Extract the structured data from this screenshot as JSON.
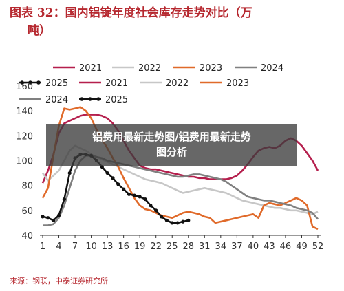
{
  "header": {
    "title_line1": "图表 32：国内铝锭年度社会库存走势对比（万",
    "title_line2": "吨）"
  },
  "overlay": {
    "line1": "铝费用最新走势图/铝费用最新走势",
    "line2": "图分析"
  },
  "footer": {
    "source": "来源：钢联，中泰证券研究所"
  },
  "colors": {
    "title": "#b6282f",
    "s2021": "#b51f4d",
    "s2022": "#c7c7c7",
    "s2023": "#e06a2a",
    "s2024": "#808080",
    "s2025": "#111111"
  },
  "chart_data": {
    "type": "line",
    "ylim": [
      40,
      160
    ],
    "yticks": [
      40,
      60,
      80,
      100,
      120,
      140,
      160
    ],
    "xlim": [
      1,
      52
    ],
    "xticks": [
      1,
      4,
      7,
      10,
      13,
      16,
      19,
      22,
      25,
      28,
      31,
      34,
      37,
      40,
      43,
      46,
      49,
      52
    ],
    "grid": false,
    "legend": {
      "placement": "top",
      "entries": [
        "2021",
        "2022",
        "2023",
        "2024",
        "2025",
        "2021",
        "2022",
        "2023",
        "2024",
        "2025"
      ]
    },
    "series": [
      {
        "name": "2021",
        "color": "#b51f4d",
        "markers": false,
        "x": [
          1,
          2,
          3,
          4,
          5,
          6,
          7,
          8,
          9,
          10,
          11,
          12,
          13,
          14,
          15,
          16,
          17,
          18,
          19,
          20,
          21,
          22,
          23,
          24,
          25,
          26,
          27,
          28,
          29,
          30,
          31,
          32,
          33,
          34,
          35,
          36,
          37,
          38,
          39,
          40,
          41,
          42,
          43,
          44,
          45,
          46,
          47,
          48,
          49,
          50,
          51,
          52
        ],
        "y": [
          82,
          92,
          105,
          122,
          130,
          132,
          134,
          136,
          137,
          137,
          137,
          136,
          134,
          130,
          124,
          116,
          108,
          102,
          96,
          94,
          93,
          93,
          92,
          91,
          90,
          89,
          88,
          87,
          87,
          86,
          86,
          85,
          85,
          85,
          85,
          86,
          88,
          92,
          97,
          103,
          108,
          110,
          111,
          110,
          112,
          116,
          118,
          116,
          112,
          106,
          100,
          92
        ]
      },
      {
        "name": "2022",
        "color": "#c7c7c7",
        "markers": false,
        "x": [
          1,
          2,
          3,
          4,
          5,
          6,
          7,
          8,
          9,
          10,
          11,
          12,
          13,
          14,
          15,
          16,
          17,
          18,
          19,
          20,
          21,
          22,
          23,
          24,
          25,
          26,
          27,
          28,
          29,
          30,
          31,
          32,
          33,
          34,
          35,
          36,
          37,
          38,
          39,
          40,
          41,
          42,
          43,
          44,
          45,
          46,
          47,
          48,
          49,
          50,
          51,
          52
        ],
        "y": [
          90,
          84,
          88,
          92,
          100,
          108,
          112,
          110,
          108,
          105,
          103,
          101,
          99,
          97,
          95,
          93,
          91,
          89,
          87,
          85,
          84,
          83,
          82,
          80,
          78,
          76,
          74,
          75,
          76,
          77,
          78,
          77,
          76,
          75,
          74,
          72,
          70,
          68,
          67,
          66,
          65,
          64,
          63,
          62,
          62,
          61,
          60,
          60,
          59,
          58,
          57,
          59
        ]
      },
      {
        "name": "2023",
        "color": "#e06a2a",
        "markers": false,
        "x": [
          1,
          2,
          3,
          4,
          5,
          6,
          7,
          8,
          9,
          10,
          11,
          12,
          13,
          14,
          15,
          16,
          17,
          18,
          19,
          20,
          21,
          22,
          23,
          24,
          25,
          26,
          27,
          28,
          29,
          30,
          31,
          32,
          33,
          34,
          35,
          36,
          37,
          38,
          39,
          40,
          41,
          42,
          43,
          44,
          45,
          46,
          47,
          48,
          49,
          50,
          51,
          52
        ],
        "y": [
          70,
          78,
          104,
          128,
          142,
          141,
          142,
          143,
          140,
          134,
          125,
          117,
          110,
          102,
          95,
          86,
          78,
          70,
          64,
          61,
          60,
          58,
          56,
          55,
          54,
          56,
          58,
          59,
          58,
          57,
          55,
          54,
          50,
          51,
          52,
          53,
          54,
          55,
          56,
          57,
          54,
          64,
          66,
          65,
          64,
          66,
          68,
          70,
          68,
          64,
          47,
          45
        ]
      },
      {
        "name": "2024",
        "color": "#808080",
        "markers": false,
        "x": [
          1,
          2,
          3,
          4,
          5,
          6,
          7,
          8,
          9,
          10,
          11,
          12,
          13,
          14,
          15,
          16,
          17,
          18,
          19,
          20,
          21,
          22,
          23,
          24,
          25,
          26,
          27,
          28,
          29,
          30,
          31,
          32,
          33,
          34,
          35,
          36,
          37,
          38,
          39,
          40,
          41,
          42,
          43,
          44,
          45,
          46,
          47,
          48,
          49,
          50,
          51,
          52
        ],
        "y": [
          48,
          48,
          49,
          54,
          64,
          78,
          92,
          100,
          104,
          104,
          103,
          102,
          100,
          99,
          98,
          97,
          96,
          95,
          94,
          93,
          92,
          91,
          90,
          89,
          88,
          87,
          87,
          88,
          89,
          89,
          88,
          87,
          86,
          85,
          83,
          80,
          77,
          74,
          71,
          70,
          69,
          68,
          68,
          67,
          66,
          65,
          64,
          62,
          61,
          60,
          58,
          53
        ]
      },
      {
        "name": "2025",
        "color": "#111111",
        "markers": true,
        "x": [
          1,
          2,
          3,
          4,
          5,
          6,
          7,
          8,
          9,
          10,
          11,
          12,
          13,
          14,
          15,
          16,
          17,
          18,
          19,
          20,
          21,
          22,
          23,
          24,
          25,
          26,
          27,
          28
        ],
        "y": [
          55,
          54,
          52,
          56,
          69,
          90,
          102,
          105,
          105,
          104,
          100,
          95,
          90,
          86,
          81,
          77,
          73,
          72,
          71,
          69,
          64,
          60,
          55,
          52,
          50,
          50,
          51,
          52
        ]
      }
    ]
  }
}
